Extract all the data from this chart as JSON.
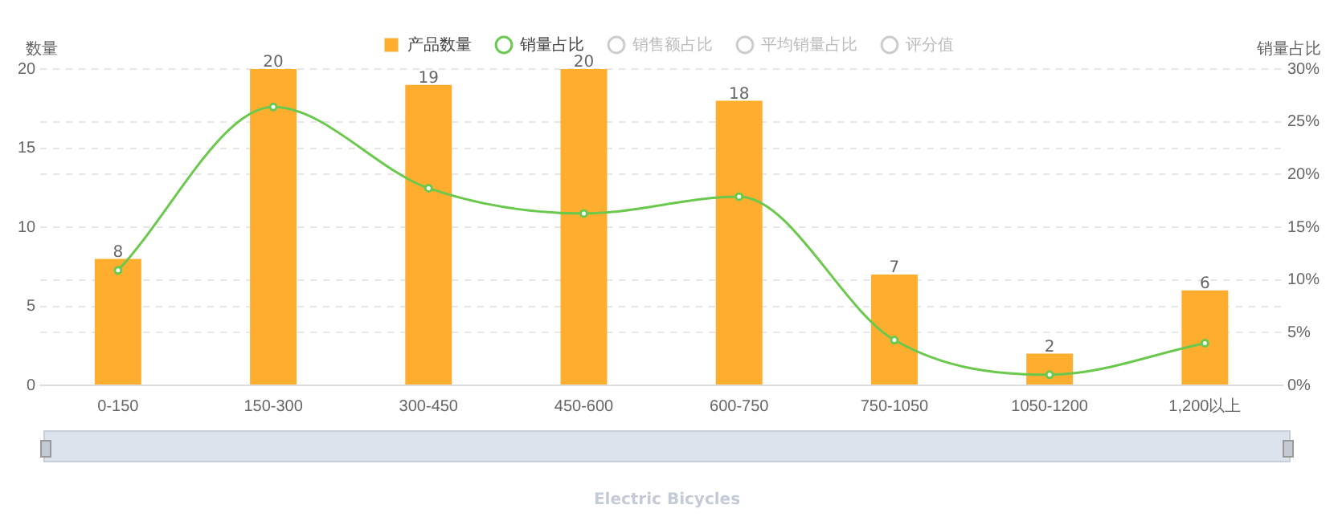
{
  "chart_data": {
    "type": "bar",
    "ylabel": "数量",
    "y2label": "销量占比",
    "categories": [
      "0-150",
      "150-300",
      "300-450",
      "450-600",
      "600-750",
      "750-1050",
      "1050-1200",
      "1,200以上"
    ],
    "series": [
      {
        "name": "产品数量",
        "color": "#ffad2f",
        "values": [
          8,
          20,
          19,
          20,
          18,
          7,
          2,
          6
        ],
        "value_labels": [
          "8",
          "20",
          "19",
          "20",
          "18",
          "7",
          "2",
          "6"
        ]
      },
      {
        "name": "销量占比",
        "type": "line",
        "axis": "y2",
        "color": "#6ac94c",
        "marker": "circle",
        "values": [
          10.9,
          26.4,
          18.7,
          16.3,
          17.9,
          4.3,
          1.0,
          4.0
        ]
      },
      {
        "name": "销售额占比",
        "type": "line",
        "axis": "y2",
        "color": "#cccccc",
        "marker": "circle",
        "values": [
          null,
          null,
          null,
          null,
          null,
          null,
          null,
          null
        ]
      },
      {
        "name": "平均销量占比",
        "type": "line",
        "axis": "y2",
        "color": "#cccccc",
        "marker": "circle",
        "values": [
          null,
          null,
          null,
          null,
          null,
          null,
          null,
          null
        ]
      },
      {
        "name": "评分值",
        "type": "line",
        "axis": "y2",
        "color": "#cccccc",
        "marker": "circle",
        "values": [
          null,
          null,
          null,
          null,
          null,
          null,
          null,
          null
        ]
      }
    ],
    "ylim": [
      0,
      20
    ],
    "yticks": [
      0,
      5,
      10,
      15,
      20
    ],
    "y2lim": [
      0,
      30
    ],
    "y2ticks": [
      {
        "value": 0,
        "label": "0%"
      },
      {
        "value": 5,
        "label": "5%"
      },
      {
        "value": 10,
        "label": "10%"
      },
      {
        "value": 15,
        "label": "15%"
      },
      {
        "value": 20,
        "label": "20%"
      },
      {
        "value": 25,
        "label": "25%"
      },
      {
        "value": 30,
        "label": "30%"
      }
    ],
    "grid": "y",
    "legend": "top",
    "line_style": "solid",
    "annotations": [
      "Electric Bicycles"
    ]
  }
}
